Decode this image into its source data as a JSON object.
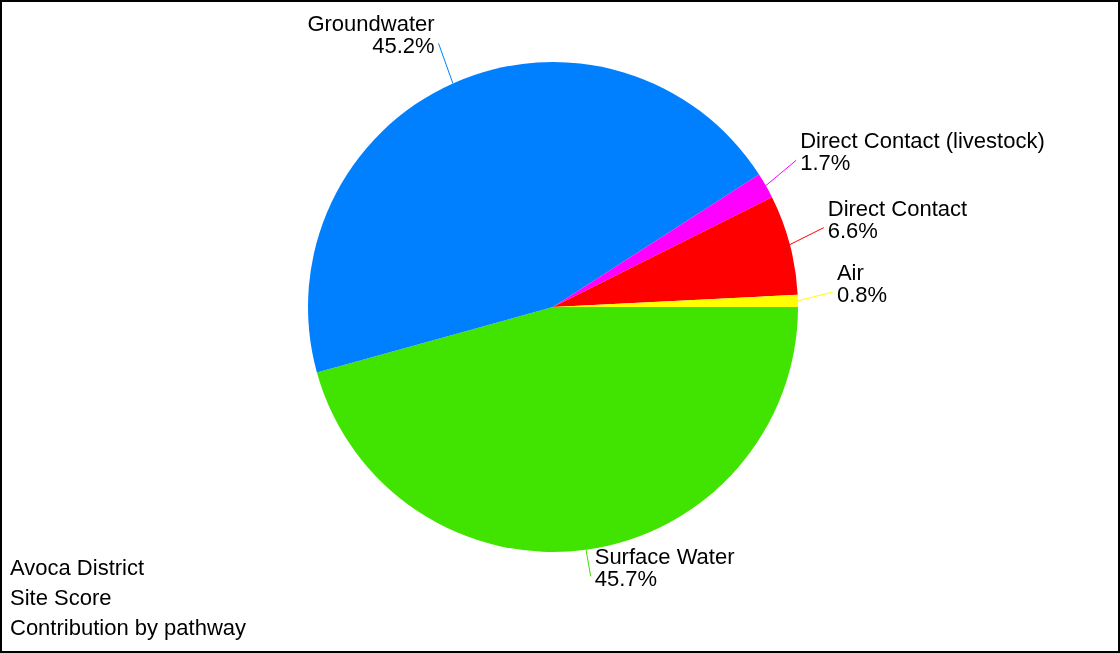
{
  "chart_data": {
    "type": "pie",
    "title": "Avoca District",
    "subtitle": "Site Score",
    "annotations": [
      "Contribution by pathway"
    ],
    "categories": [
      "Surface Water",
      "Groundwater",
      "Direct Contact (livestock)",
      "Direct Contact",
      "Air"
    ],
    "values": [
      45.7,
      45.2,
      1.7,
      6.6,
      0.8
    ],
    "value_labels": [
      "45.7%",
      "45.2%",
      "1.7%",
      "6.6%",
      "0.8%"
    ],
    "colors": [
      "#40e400",
      "#0080ff",
      "#ff00ff",
      "#ff0000",
      "#ffff00"
    ],
    "legend": false
  }
}
